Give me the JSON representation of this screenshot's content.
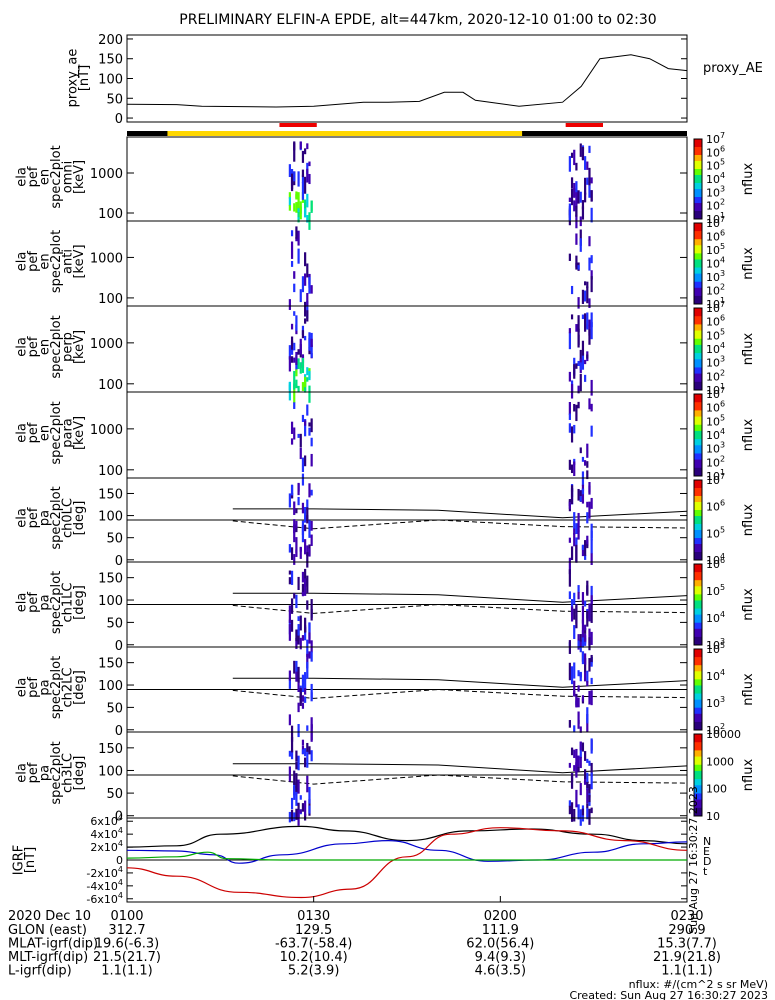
{
  "title": "PRELIMINARY ELFIN-A EPDE, alt=447km, 2020-12-10 01:00 to 02:30",
  "colors": {
    "orbit_bar_black": "#000000",
    "orbit_bar_yellow": "#ffd700",
    "science_zone_red": "#ee0000",
    "B_north": "#000000",
    "B_east": "#0000cc",
    "B_down": "#cc0000",
    "B_total": "#00aa00"
  },
  "footer": {
    "date_label": "2020 Dec 10",
    "rows": [
      {
        "label": "GLON (east)",
        "values": [
          "312.7",
          "129.5",
          "111.9",
          "290.9"
        ]
      },
      {
        "label": "MLAT-igrf(dip)",
        "values": [
          "19.6(-6.3)",
          "-63.7(-58.4)",
          "62.0(56.4)",
          "15.3(7.7)"
        ]
      },
      {
        "label": "MLT-igrf(dip)",
        "values": [
          "21.5(21.7)",
          "10.2(10.4)",
          "9.4(9.3)",
          "21.9(21.8)"
        ]
      },
      {
        "label": "L-igrf(dip)",
        "values": [
          "1.1(1.1)",
          "5.2(3.9)",
          "4.6(3.5)",
          "1.1(1.1)"
        ]
      }
    ],
    "time_ticks": [
      "0100",
      "0130",
      "0200",
      "0230"
    ],
    "units_note": "nflux: #/(cm^2 s sr MeV)",
    "created": "Created: Sun Aug 27 16:30:27 2023",
    "stamp": "Sun Aug 27 16:30:27 2023"
  },
  "chart_data": [
    {
      "type": "line",
      "panel": "proxy_ae",
      "ylabel": "proxy_ae [nT]",
      "legend": "proxy_AE",
      "yticks": [
        0,
        50,
        100,
        150,
        200
      ],
      "ylim": [
        -10,
        210
      ],
      "x_minutes": [
        0,
        8,
        12,
        24,
        30,
        38,
        42,
        47,
        51,
        54,
        56,
        63,
        70,
        73,
        76,
        81,
        84,
        87,
        90
      ],
      "values": [
        35,
        34,
        30,
        28,
        30,
        40,
        40,
        42,
        65,
        65,
        45,
        30,
        40,
        80,
        150,
        160,
        150,
        125,
        120
      ]
    },
    {
      "type": "heatmap",
      "panel": "ela_pef_en_spec2plot_omni",
      "ylabel": "ela pef en spec2plot omni [keV]",
      "yscale": "log",
      "yticks": [
        100,
        1000
      ],
      "colorbar_label": "nflux",
      "colorbar_ticks": [
        "10^1",
        "10^2",
        "10^3",
        "10^4",
        "10^5",
        "10^6",
        "10^7"
      ]
    },
    {
      "type": "heatmap",
      "panel": "ela_pef_en_spec2plot_anti",
      "ylabel": "ela pef en spec2plot anti [keV]",
      "yscale": "log",
      "yticks": [
        100,
        1000
      ],
      "colorbar_label": "nflux",
      "colorbar_ticks": [
        "10^1",
        "10^2",
        "10^3",
        "10^4",
        "10^5",
        "10^6",
        "10^7"
      ]
    },
    {
      "type": "heatmap",
      "panel": "ela_pef_en_spec2plot_perp",
      "ylabel": "ela pef en spec2plot perp [keV]",
      "yscale": "log",
      "yticks": [
        100,
        1000
      ],
      "colorbar_label": "nflux",
      "colorbar_ticks": [
        "10^1",
        "10^2",
        "10^3",
        "10^4",
        "10^5",
        "10^6",
        "10^7"
      ]
    },
    {
      "type": "heatmap",
      "panel": "ela_pef_en_spec2plot_para",
      "ylabel": "ela pef en spec2plot para [keV]",
      "yscale": "log",
      "yticks": [
        100,
        1000
      ],
      "colorbar_label": "nflux",
      "colorbar_ticks": [
        "10^1",
        "10^2",
        "10^3",
        "10^4",
        "10^5",
        "10^6",
        "10^7"
      ]
    },
    {
      "type": "heatmap",
      "panel": "ela_pef_pa_spec2plot_ch0LC",
      "ylabel": "ela pef pa spec2plot ch0LC [deg]",
      "yticks": [
        0,
        50,
        100,
        150
      ],
      "colorbar_label": "nflux",
      "colorbar_ticks": [
        "10^4",
        "10^5",
        "10^6",
        "10^7"
      ]
    },
    {
      "type": "heatmap",
      "panel": "ela_pef_pa_spec2plot_ch1LC",
      "ylabel": "ela pef pa spec2plot ch1LC [deg]",
      "yticks": [
        0,
        50,
        100,
        150
      ],
      "colorbar_label": "nflux",
      "colorbar_ticks": [
        "10^3",
        "10^4",
        "10^5",
        "10^6"
      ]
    },
    {
      "type": "heatmap",
      "panel": "ela_pef_pa_spec2plot_ch2LC",
      "ylabel": "ela pef pa spec2plot ch2LC [deg]",
      "yticks": [
        0,
        50,
        100,
        150
      ],
      "colorbar_label": "nflux",
      "colorbar_ticks": [
        "10^2",
        "10^3",
        "10^4",
        "10^5"
      ]
    },
    {
      "type": "heatmap",
      "panel": "ela_pef_pa_spec2plot_ch3LC",
      "ylabel": "ela pef pa spec2plot ch3LC [deg]",
      "yticks": [
        0,
        50,
        100,
        150
      ],
      "colorbar_label": "nflux",
      "colorbar_ticks": [
        "10",
        "100",
        "1000",
        "10000"
      ]
    },
    {
      "type": "line",
      "panel": "igrf",
      "ylabel": "IGRF [nT]",
      "yticks": [
        "-6x10^4",
        "-4x10^4",
        "-2x10^4",
        "0",
        "2x10^4",
        "4x10^4",
        "6x10^4"
      ],
      "ylim": [
        -65000,
        65000
      ],
      "legend": [
        "N",
        "E",
        "D",
        "t"
      ],
      "series": [
        {
          "name": "N",
          "x_minutes": [
            0,
            8,
            15,
            28,
            35,
            45,
            55,
            65,
            75,
            83,
            90
          ],
          "values": [
            20000,
            22000,
            40000,
            52000,
            45000,
            30000,
            45000,
            48000,
            40000,
            30000,
            25000
          ]
        },
        {
          "name": "E",
          "x_minutes": [
            0,
            8,
            14,
            18,
            25,
            35,
            42,
            50,
            58,
            66,
            75,
            83,
            90
          ],
          "values": [
            15000,
            14000,
            8000,
            -5000,
            8000,
            25000,
            30000,
            15000,
            -2000,
            0,
            12000,
            25000,
            28000
          ]
        },
        {
          "name": "D",
          "x_minutes": [
            0,
            8,
            18,
            28,
            36,
            45,
            52,
            60,
            70,
            80,
            90
          ],
          "values": [
            -12000,
            -25000,
            -50000,
            -58000,
            -45000,
            5000,
            40000,
            50000,
            45000,
            30000,
            15000
          ]
        },
        {
          "name": "t",
          "x_minutes": [
            0,
            8,
            13,
            16,
            25,
            45,
            60,
            75,
            90
          ],
          "values": [
            3000,
            5000,
            12000,
            2000,
            0,
            0,
            0,
            0,
            0
          ]
        }
      ]
    }
  ]
}
